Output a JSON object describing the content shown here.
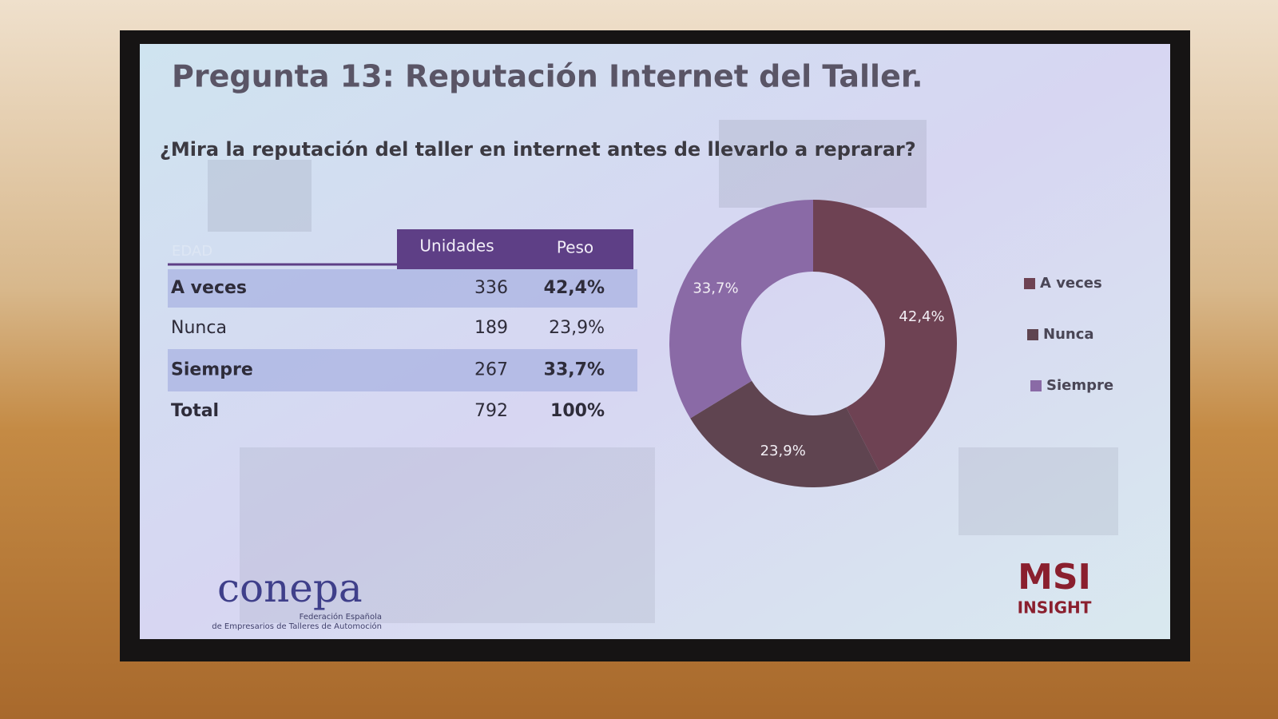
{
  "slide": {
    "title": "Pregunta 13: Reputación Internet del Taller.",
    "question": "¿Mira la reputación del taller en internet antes de llevarlo a reprarar?",
    "logo_left": "conepa",
    "logo_left_sub": [
      "Federación Española",
      "de Empresarios de Talleres de Automoción"
    ],
    "logo_right": "MSI",
    "logo_right_sub": "INSIGHT"
  },
  "table": {
    "header": [
      "EDAD",
      "Unidades",
      "Peso"
    ],
    "rows": [
      [
        "A veces",
        "336",
        "42,4%"
      ],
      [
        "Nunca",
        "189",
        "23,9%"
      ],
      [
        "Siempre",
        "267",
        "33,7%"
      ],
      [
        "Total",
        "792",
        "100%"
      ]
    ]
  },
  "chart_data": {
    "type": "pie",
    "donut": true,
    "categories": [
      "A veces",
      "Nunca",
      "Siempre"
    ],
    "values": [
      42.4,
      23.9,
      33.7
    ],
    "value_labels": [
      "42,4%",
      "23,9%",
      "33,7%"
    ],
    "colors": [
      "#6e4253",
      "#5f4450",
      "#8a6aa6"
    ],
    "legend": "right"
  }
}
